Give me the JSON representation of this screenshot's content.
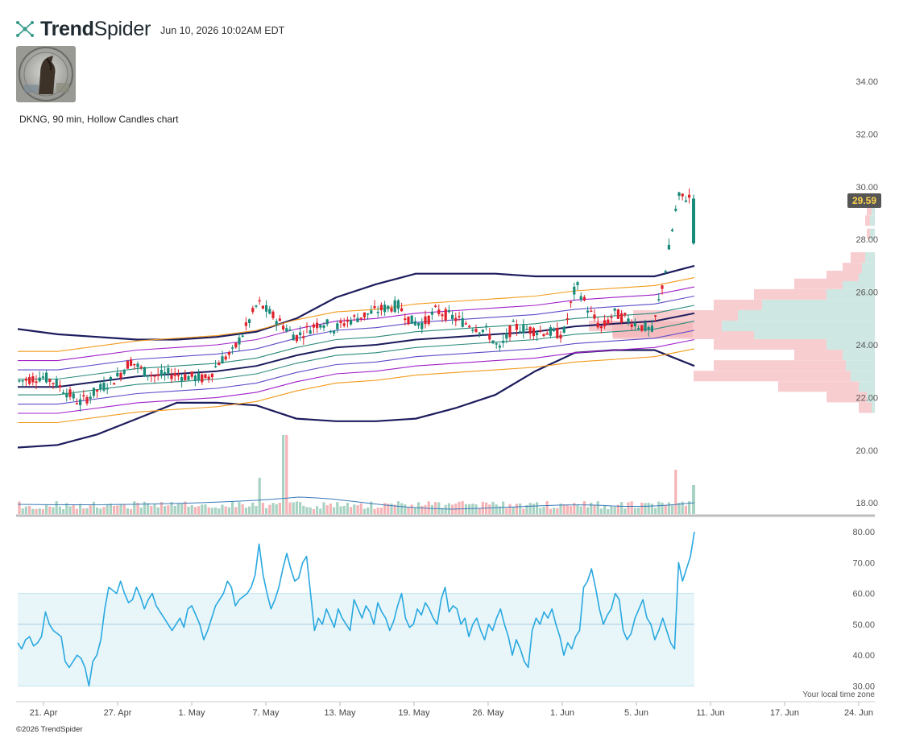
{
  "header": {
    "brand_bold": "Trend",
    "brand_light": "Spider",
    "timestamp": "Jun 10, 2026 10:02AM EDT"
  },
  "chart_title": "DKNG, 90 min, Hollow Candles chart",
  "footer": "©2026 TrendSpider",
  "timezone_note": "Your local time zone",
  "colors": {
    "up": "#1a8a7a",
    "down": "#e0212b",
    "outer_band": "#1c1c5e",
    "orange_band": "#f39a1c",
    "purple_band": "#a020c8",
    "violet_band": "#5b4cc8",
    "teal_band": "#2a8a7a",
    "rsi_line": "#29a8e0",
    "rsi_zone": "#e8f6fa",
    "price_badge": "#555555",
    "price_badge_text": "#ffd24d"
  },
  "chart_data": [
    {
      "type": "candlestick",
      "title": "DKNG, 90 min, Hollow Candles chart",
      "ylim": [
        17.6,
        35.0
      ],
      "y_ticks": [
        "34.00",
        "32.00",
        "30.00",
        "28.00",
        "26.00",
        "24.00",
        "22.00",
        "20.00",
        "18.00"
      ],
      "x_ticks": [
        "21. Apr",
        "27. Apr",
        "1. May",
        "7. May",
        "13. May",
        "19. May",
        "26. May",
        "1. Jun",
        "5. Jun",
        "11. Jun",
        "17. Jun",
        "24. Jun"
      ],
      "last_price": "29.59",
      "close_path": [
        [
          "2026-04-20",
          22.7
        ],
        [
          "2026-04-21",
          22.8
        ],
        [
          "2026-04-22",
          22.6
        ],
        [
          "2026-04-23",
          22.2
        ],
        [
          "2026-04-24",
          21.8
        ],
        [
          "2026-04-27",
          22.8
        ],
        [
          "2026-04-28",
          23.4
        ],
        [
          "2026-04-29",
          23.0
        ],
        [
          "2026-04-30",
          22.8
        ],
        [
          "2026-05-01",
          22.9
        ],
        [
          "2026-05-04",
          22.7
        ],
        [
          "2026-05-05",
          23.4
        ],
        [
          "2026-05-06",
          23.7
        ],
        [
          "2026-05-07",
          24.6
        ],
        [
          "2026-05-08",
          25.6
        ],
        [
          "2026-05-11",
          24.3
        ],
        [
          "2026-05-12",
          24.6
        ],
        [
          "2026-05-13",
          24.9
        ],
        [
          "2026-05-14",
          24.6
        ],
        [
          "2026-05-15",
          24.9
        ],
        [
          "2026-05-18",
          25.4
        ],
        [
          "2026-05-19",
          25.5
        ],
        [
          "2026-05-20",
          24.9
        ],
        [
          "2026-05-21",
          24.8
        ],
        [
          "2026-05-22",
          25.3
        ],
        [
          "2026-05-26",
          24.5
        ],
        [
          "2026-05-27",
          23.8
        ],
        [
          "2026-05-28",
          24.7
        ],
        [
          "2026-05-29",
          24.6
        ],
        [
          "2026-06-01",
          24.4
        ],
        [
          "2026-06-02",
          26.3
        ],
        [
          "2026-06-03",
          25.3
        ],
        [
          "2026-06-04",
          24.6
        ],
        [
          "2026-06-05",
          25.2
        ],
        [
          "2026-06-08",
          24.5
        ],
        [
          "2026-06-09",
          26.8
        ],
        [
          "2026-06-10",
          29.59
        ]
      ],
      "bands": {
        "outer_upper": [
          24.6,
          24.4,
          24.3,
          24.2,
          24.2,
          24.3,
          24.5,
          25.0,
          25.8,
          26.3,
          26.7,
          26.7,
          26.7,
          26.6,
          26.6,
          26.6,
          26.6,
          27.0
        ],
        "outer_lower": [
          20.1,
          20.2,
          20.6,
          21.2,
          21.8,
          21.8,
          21.7,
          21.2,
          21.1,
          21.1,
          21.2,
          21.6,
          22.1,
          23.0,
          23.7,
          23.8,
          23.8,
          23.2
        ],
        "mid": [
          22.4,
          22.4,
          22.6,
          22.8,
          22.9,
          23.0,
          23.2,
          23.6,
          23.9,
          24.0,
          24.2,
          24.3,
          24.4,
          24.5,
          24.7,
          24.8,
          24.9,
          25.2
        ]
      },
      "volume": {
        "ylim": [
          0,
          100
        ],
        "spikes_note": "largest volume bars near 8 May and 9–10 Jun"
      }
    },
    {
      "type": "line",
      "indicator": "RSI",
      "ylim": [
        28,
        82
      ],
      "y_ticks": [
        "80.00",
        "70.00",
        "60.00",
        "50.00",
        "40.00",
        "30.00"
      ],
      "zone": [
        30,
        60
      ],
      "midline": 50,
      "values": [
        44,
        42,
        45,
        46,
        43,
        44,
        46,
        54,
        50,
        48,
        47,
        46,
        38,
        36,
        38,
        40,
        39,
        36,
        30,
        38,
        40,
        45,
        55,
        62,
        61,
        60,
        64,
        60,
        57,
        58,
        62,
        59,
        55,
        58,
        60,
        56,
        54,
        52,
        50,
        48,
        50,
        52,
        49,
        55,
        56,
        53,
        50,
        45,
        48,
        52,
        56,
        58,
        60,
        64,
        62,
        56,
        58,
        59,
        60,
        62,
        66,
        76,
        66,
        60,
        55,
        58,
        62,
        68,
        73,
        68,
        64,
        65,
        70,
        72,
        60,
        48,
        52,
        50,
        55,
        52,
        49,
        55,
        52,
        50,
        48,
        58,
        55,
        52,
        56,
        54,
        50,
        57,
        54,
        52,
        48,
        51,
        56,
        60,
        52,
        49,
        50,
        55,
        53,
        57,
        55,
        52,
        50,
        58,
        62,
        54,
        56,
        55,
        50,
        52,
        46,
        50,
        52,
        48,
        45,
        50,
        48,
        52,
        55,
        50,
        46,
        40,
        45,
        42,
        38,
        36,
        48,
        52,
        50,
        54,
        52,
        55,
        50,
        46,
        40,
        44,
        42,
        46,
        48,
        62,
        64,
        68,
        62,
        55,
        50,
        53,
        55,
        60,
        58,
        48,
        45,
        47,
        52,
        55,
        58,
        52,
        50,
        45,
        48,
        52,
        48,
        44,
        42,
        70,
        64,
        68,
        72,
        80
      ]
    }
  ]
}
